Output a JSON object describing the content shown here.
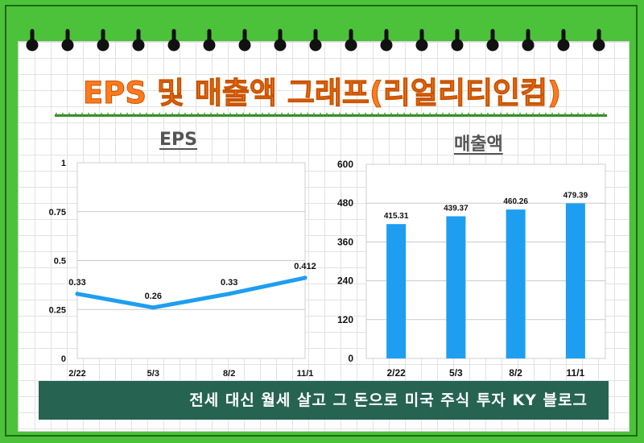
{
  "page": {
    "title": "EPS 및 매출액 그래프(리얼리티인컴)",
    "footer": "전세 대신 월세 살고 그 돈으로 미국 주식 투자 KY 블로그"
  },
  "colors": {
    "frame": "#4cc13a",
    "title": "#ff7a1c",
    "accent_blue": "#1e9ef0",
    "banner": "#266351"
  },
  "chart_data": [
    {
      "type": "line",
      "title": "EPS",
      "categories": [
        "2/22",
        "5/3",
        "8/2",
        "11/1"
      ],
      "series": [
        {
          "values": [
            0.33,
            0.26,
            0.33,
            0.412
          ]
        }
      ],
      "data_labels": [
        "0.33",
        "0.26",
        "0.33",
        "0.412"
      ],
      "yticks": [
        "0",
        "0.25",
        "0.5",
        "0.75",
        "1"
      ],
      "ylim": [
        0,
        1
      ],
      "grid": true,
      "color": "#1e9ef0"
    },
    {
      "type": "bar",
      "title": "매출액",
      "categories": [
        "2/22",
        "5/3",
        "8/2",
        "11/1"
      ],
      "values": [
        415.31,
        439.37,
        460.26,
        479.39
      ],
      "data_labels": [
        "415.31",
        "439.37",
        "460.26",
        "479.39"
      ],
      "yticks": [
        "0",
        "120",
        "240",
        "360",
        "480",
        "600"
      ],
      "ylim": [
        0,
        600
      ],
      "grid": true,
      "color": "#1e9ef0"
    }
  ]
}
